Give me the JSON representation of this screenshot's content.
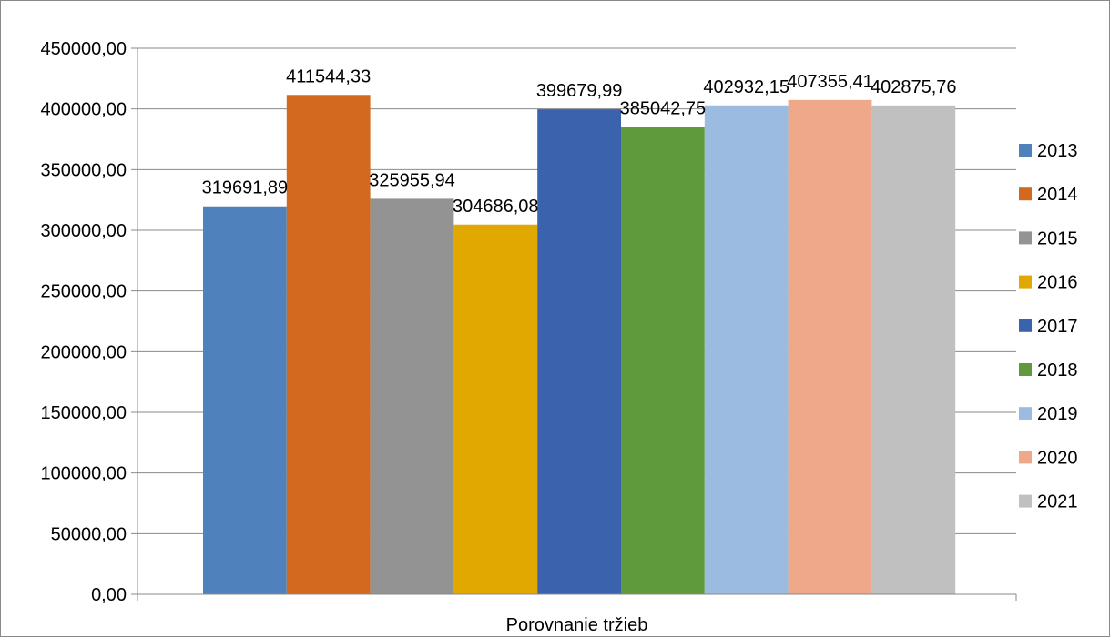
{
  "chart_data": {
    "type": "bar",
    "categories": [
      "Porovnanie tržieb"
    ],
    "series": [
      {
        "name": "2013",
        "values": [
          319691.89
        ],
        "label": "319691,89",
        "color": "#4f81bd"
      },
      {
        "name": "2014",
        "values": [
          411544.33
        ],
        "label": "411544,33",
        "color": "#d2691e"
      },
      {
        "name": "2015",
        "values": [
          325955.94
        ],
        "label": "325955,94",
        "color": "#939393"
      },
      {
        "name": "2016",
        "values": [
          304686.08
        ],
        "label": "304686,08",
        "color": "#e0a800"
      },
      {
        "name": "2017",
        "values": [
          399679.99
        ],
        "label": "399679,99",
        "color": "#3b63ad"
      },
      {
        "name": "2018",
        "values": [
          385042.75
        ],
        "label": "385042,75",
        "color": "#5f9b3c"
      },
      {
        "name": "2019",
        "values": [
          402932.15
        ],
        "label": "402932,15",
        "color": "#9bbbe0"
      },
      {
        "name": "2020",
        "values": [
          407355.41
        ],
        "label": "407355,41",
        "color": "#f0a88a"
      },
      {
        "name": "2021",
        "values": [
          402875.76
        ],
        "label": "402875,76",
        "color": "#c0c0c0"
      }
    ],
    "y_ticks": [
      "0,00",
      "50000,00",
      "100000,00",
      "150000,00",
      "200000,00",
      "250000,00",
      "300000,00",
      "350000,00",
      "400000,00",
      "450000,00"
    ],
    "ylim": [
      0,
      450000
    ],
    "grid": true,
    "legend_position": "right",
    "title": "",
    "xlabel": "",
    "ylabel": ""
  }
}
